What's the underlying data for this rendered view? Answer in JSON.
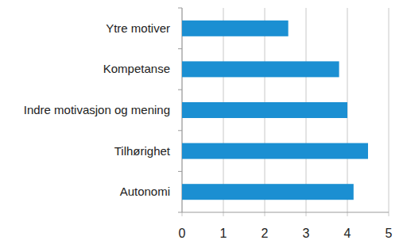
{
  "chart_data": {
    "type": "bar",
    "orientation": "horizontal",
    "categories": [
      "Ytre motiver",
      "Kompetanse",
      "Indre motivasjon og mening",
      "Tilhørighet",
      "Autonomi"
    ],
    "values": [
      2.57,
      3.8,
      4.0,
      4.5,
      4.15
    ],
    "color": "#1b8fd2",
    "xlim": [
      0,
      5
    ],
    "xticks": [
      0,
      1,
      2,
      3,
      4,
      5
    ],
    "grid": true
  }
}
